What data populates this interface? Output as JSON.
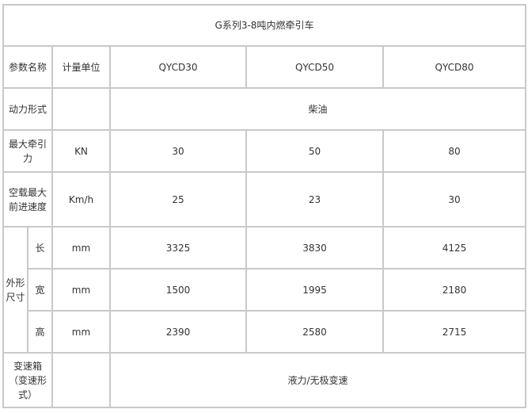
{
  "title": "G系列3-8吨内燃牵引车",
  "header": {
    "param": "参数名称",
    "unit": "计量单位",
    "models": [
      "QYCD30",
      "QYCD50",
      "QYCD80"
    ]
  },
  "power": {
    "label": "动力形式",
    "value": "柴油"
  },
  "traction": {
    "label": "最大牵引力",
    "unit": "KN",
    "values": [
      "30",
      "50",
      "80"
    ]
  },
  "speed": {
    "label": "空载最大前进速度",
    "unit": "Km/h",
    "values": [
      "25",
      "23",
      "30"
    ]
  },
  "dimensions": {
    "label": "外形尺寸",
    "rows": [
      {
        "label": "长",
        "unit": "mm",
        "values": [
          "3325",
          "3830",
          "4125"
        ]
      },
      {
        "label": "宽",
        "unit": "mm",
        "values": [
          "1500",
          "1995",
          "2180"
        ]
      },
      {
        "label": "高",
        "unit": "mm",
        "values": [
          "2390",
          "2580",
          "2715"
        ]
      }
    ]
  },
  "transmission": {
    "label": "变速箱（变速形式）",
    "value": "液力/无极变速"
  }
}
